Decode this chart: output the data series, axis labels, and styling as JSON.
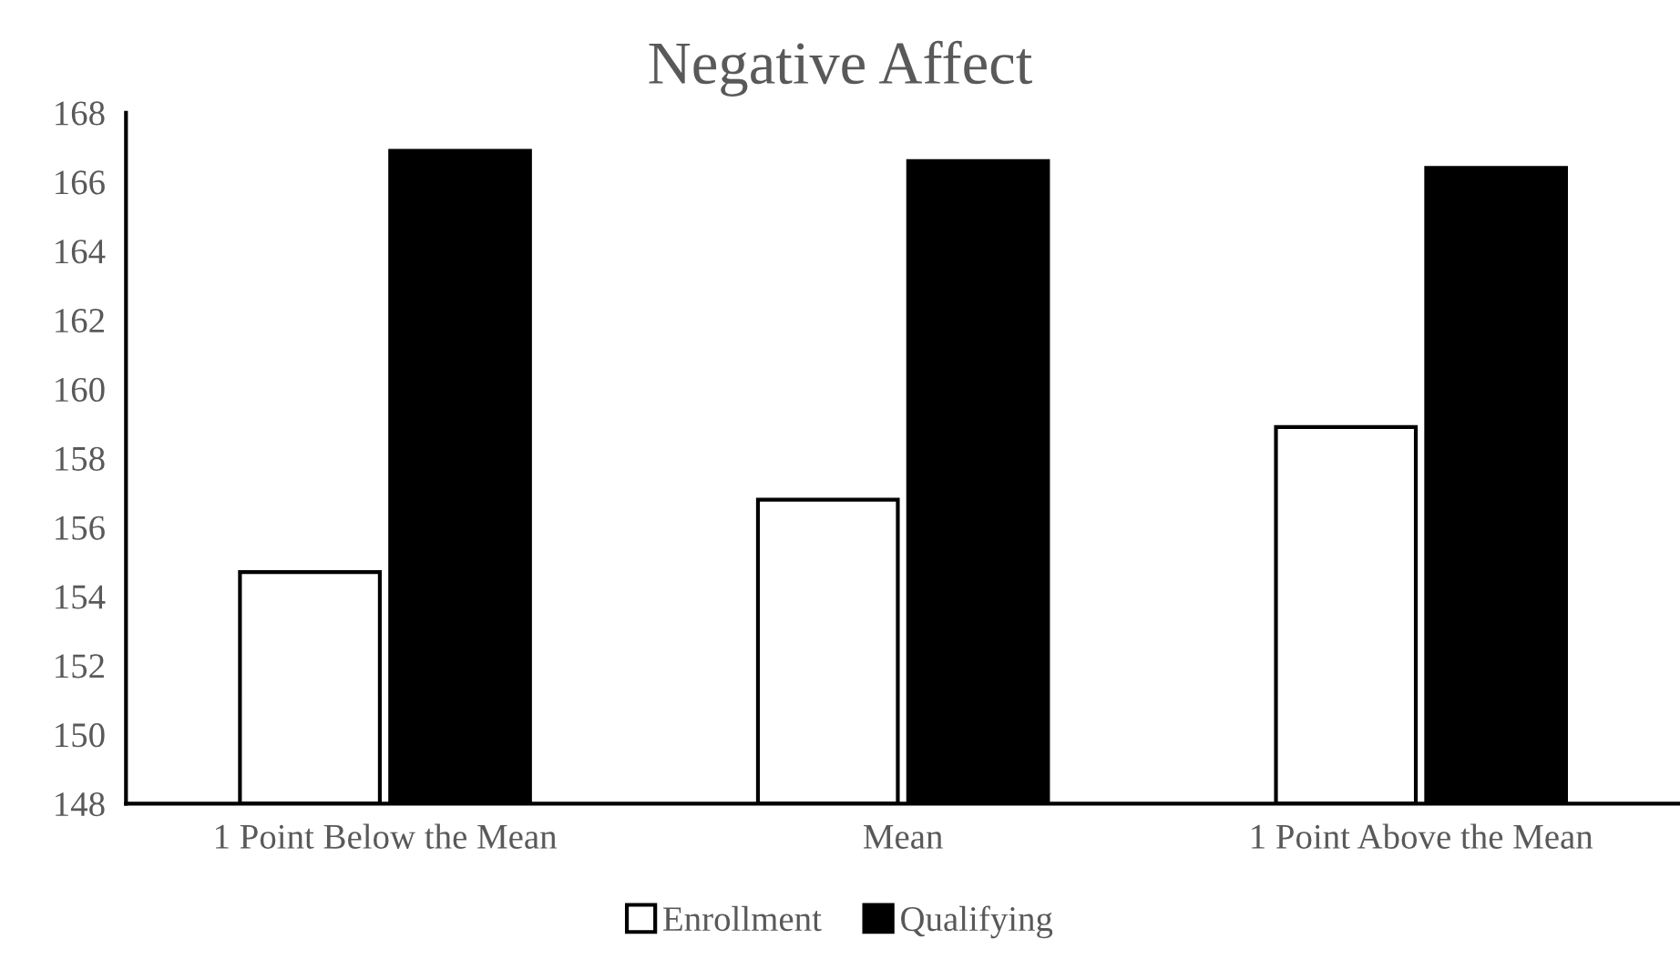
{
  "chart_data": {
    "type": "bar",
    "title": "Negative Affect",
    "categories": [
      "1 Point Below the Mean",
      "Mean",
      "1 Point Above the Mean"
    ],
    "series": [
      {
        "name": "Enrollment",
        "color": "#ffffff",
        "values": [
          154.7,
          156.8,
          158.9
        ]
      },
      {
        "name": "Qualifying",
        "color": "#000000",
        "values": [
          166.9,
          166.6,
          166.4
        ]
      }
    ],
    "ylim": [
      148,
      168
    ],
    "yticks": [
      148,
      150,
      152,
      154,
      156,
      158,
      160,
      162,
      164,
      166,
      168
    ],
    "grid": false,
    "legend": "bottom"
  }
}
